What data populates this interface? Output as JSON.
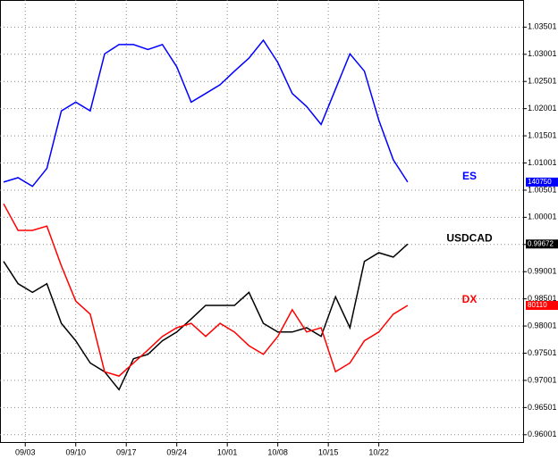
{
  "chart_data": {
    "type": "line",
    "x": [
      -3,
      -1,
      1,
      3,
      5,
      7,
      9,
      11,
      13,
      15,
      17,
      19,
      21,
      23,
      25,
      27,
      29,
      31,
      33,
      35,
      37,
      39,
      41,
      43,
      45,
      47,
      49,
      51,
      53
    ],
    "xlim": [
      -3.5,
      69
    ],
    "xticks": [
      {
        "value": 0,
        "label": "09/03"
      },
      {
        "value": 7,
        "label": "09/10"
      },
      {
        "value": 14,
        "label": "09/17"
      },
      {
        "value": 21,
        "label": "09/24"
      },
      {
        "value": 28,
        "label": "10/01"
      },
      {
        "value": 35,
        "label": "10/08"
      },
      {
        "value": 42,
        "label": "10/15"
      },
      {
        "value": 49,
        "label": "10/22"
      }
    ],
    "ylim": [
      0.9585,
      1.04
    ],
    "yticks": [
      0.96001,
      0.96501,
      0.97001,
      0.97501,
      0.98001,
      0.98501,
      0.99001,
      0.99501,
      1.00001,
      1.00501,
      1.01001,
      1.01501,
      1.02001,
      1.02501,
      1.03001,
      1.03501
    ],
    "grid": true,
    "series": [
      {
        "name": "ES",
        "color": "#0000ff",
        "last_label": "140750",
        "values": [
          1.0065,
          1.0073,
          1.0057,
          1.009,
          1.0196,
          1.0212,
          1.0196,
          1.0301,
          1.0318,
          1.0318,
          1.0309,
          1.0318,
          1.0277,
          1.0212,
          1.0228,
          1.0244,
          1.0269,
          1.0293,
          1.0326,
          1.0285,
          1.0228,
          1.0204,
          1.0171,
          1.0236,
          1.0301,
          1.0269,
          1.0179,
          1.0106,
          1.0065
        ]
      },
      {
        "name": "USDCAD",
        "color": "#000000",
        "last_label": "0.99672",
        "values": [
          0.9919,
          0.9878,
          0.9862,
          0.9878,
          0.9805,
          0.9773,
          0.9732,
          0.9716,
          0.9683,
          0.974,
          0.9748,
          0.9773,
          0.9789,
          0.9813,
          0.9838,
          0.9838,
          0.9838,
          0.9862,
          0.9805,
          0.9789,
          0.9789,
          0.9797,
          0.9781,
          0.9854,
          0.9797,
          0.9919,
          0.9935,
          0.9927,
          0.9951
        ]
      },
      {
        "name": "DX",
        "color": "#ff0000",
        "last_label": "80110",
        "values": [
          1.0025,
          0.9976,
          0.9976,
          0.9984,
          0.9911,
          0.9846,
          0.9822,
          0.9716,
          0.9708,
          0.9732,
          0.9756,
          0.9781,
          0.9797,
          0.9805,
          0.9781,
          0.9805,
          0.9789,
          0.9764,
          0.9748,
          0.9781,
          0.983,
          0.9789,
          0.9797,
          0.9716,
          0.9732,
          0.9773,
          0.9789,
          0.9822,
          0.9838
        ]
      }
    ]
  }
}
